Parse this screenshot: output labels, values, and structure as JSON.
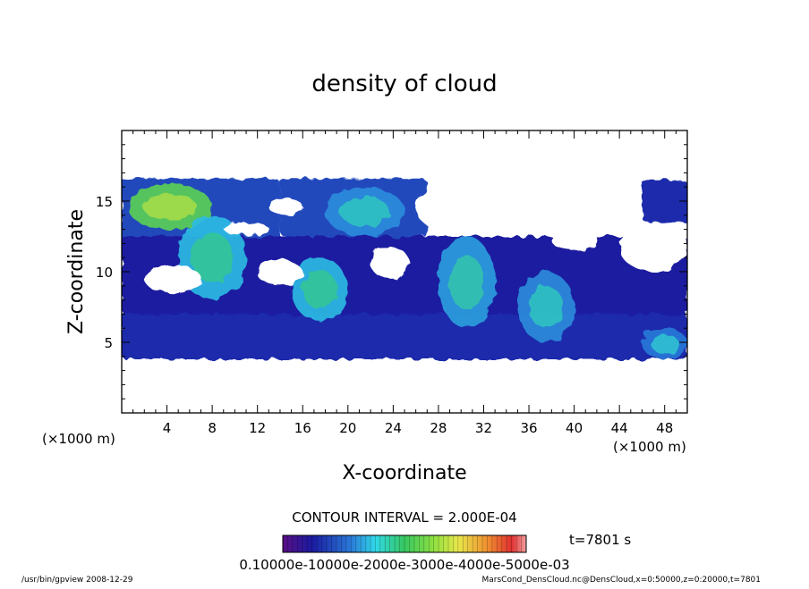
{
  "chart_data": {
    "type": "heatmap",
    "title": "density of cloud",
    "xlabel": "X-coordinate",
    "ylabel": "Z-coordinate",
    "x_unit_left": "(×1000 m)",
    "x_unit_right": "(×1000 m)",
    "xlim": [
      0,
      50
    ],
    "ylim": [
      0,
      20
    ],
    "x_ticks": [
      "4",
      "8",
      "12",
      "16",
      "20",
      "24",
      "28",
      "32",
      "36",
      "40",
      "44",
      "48"
    ],
    "y_ticks": [
      "5",
      "10",
      "15"
    ],
    "contour_interval": "CONTOUR INTERVAL = 2.000E-04",
    "time_label": "t=7801 s",
    "colorbar_labels": "0.10000e-10000e-2000e-3000e-4000e-5000e-03",
    "colorbar_range": [
      0,
      0.001
    ],
    "footer_left": "/usr/bin/gpview   2008-12-29",
    "footer_right": "MarsCond_DensCloud.nc@DensCloud,x=0:50000,z=0:20000,t=7801",
    "regions": [
      {
        "name": "lower-cloud-deck",
        "x": [
          0,
          50
        ],
        "z": [
          3.8,
          7.2
        ],
        "level": 0.15
      },
      {
        "name": "upper-left-deck",
        "x": [
          0,
          14
        ],
        "z": [
          12.0,
          16.6
        ],
        "level": 0.2
      },
      {
        "name": "upper-middle-deck",
        "x": [
          14,
          27
        ],
        "z": [
          12.5,
          16.6
        ],
        "level": 0.2
      },
      {
        "name": "upper-right-deck",
        "x": [
          46,
          50
        ],
        "z": [
          13.5,
          16.5
        ],
        "level": 0.15
      },
      {
        "name": "mid-band",
        "x": [
          0,
          50
        ],
        "z": [
          7.0,
          12.5
        ],
        "level": 0.12
      },
      {
        "name": "max-core-left",
        "x": [
          0.5,
          8
        ],
        "z": [
          13.0,
          16.2
        ],
        "level": 0.55
      },
      {
        "name": "core-x8",
        "x": [
          5,
          11
        ],
        "z": [
          8.0,
          14.0
        ],
        "level": 0.35
      },
      {
        "name": "core-x17",
        "x": [
          15,
          20
        ],
        "z": [
          6.5,
          11.0
        ],
        "level": 0.35
      },
      {
        "name": "core-x21",
        "x": [
          18,
          25
        ],
        "z": [
          12.5,
          16.0
        ],
        "level": 0.3
      },
      {
        "name": "core-x30",
        "x": [
          28,
          33
        ],
        "z": [
          6.0,
          12.5
        ],
        "level": 0.32
      },
      {
        "name": "core-x38",
        "x": [
          35,
          40
        ],
        "z": [
          5.0,
          10.0
        ],
        "level": 0.3
      },
      {
        "name": "core-x48",
        "x": [
          46,
          50
        ],
        "z": [
          3.8,
          6.0
        ],
        "level": 0.28
      }
    ]
  }
}
